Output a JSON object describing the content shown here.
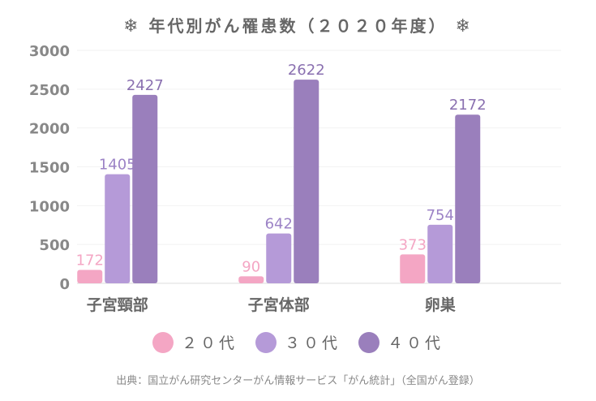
{
  "chart_data": {
    "type": "bar",
    "title": "年代別がん罹患数（２０２０年度）",
    "categories": [
      "子宮頸部",
      "子宮体部",
      "卵巣"
    ],
    "series": [
      {
        "name": "２０代",
        "color": "#f4a6c4",
        "label_color": "#f4a6c4",
        "values": [
          172,
          90,
          373
        ]
      },
      {
        "name": "３０代",
        "color": "#b59ad8",
        "label_color": "#9c83c6",
        "values": [
          1405,
          642,
          754
        ]
      },
      {
        "name": "４０代",
        "color": "#9a7fbc",
        "label_color": "#8a70b0",
        "values": [
          2427,
          2622,
          2172
        ]
      }
    ],
    "ylim": [
      0,
      3000
    ],
    "yticks": [
      0,
      500,
      1000,
      1500,
      2000,
      2500,
      3000
    ],
    "grid": true,
    "legend_position": "bottom"
  },
  "title_icon": "snowflake-icon",
  "source": "出典：国立がん研究センターがん情報サービス「がん統計」（全国がん登録）"
}
